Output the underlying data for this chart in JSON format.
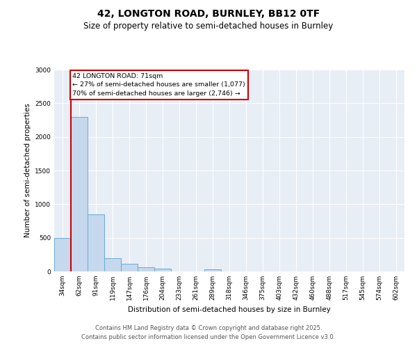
{
  "title1": "42, LONGTON ROAD, BURNLEY, BB12 0TF",
  "title2": "Size of property relative to semi-detached houses in Burnley",
  "xlabel": "Distribution of semi-detached houses by size in Burnley",
  "ylabel": "Number of semi-detached properties",
  "categories": [
    "34sqm",
    "62sqm",
    "91sqm",
    "119sqm",
    "147sqm",
    "176sqm",
    "204sqm",
    "233sqm",
    "261sqm",
    "289sqm",
    "318sqm",
    "346sqm",
    "375sqm",
    "403sqm",
    "432sqm",
    "460sqm",
    "488sqm",
    "517sqm",
    "545sqm",
    "574sqm",
    "602sqm"
  ],
  "values": [
    500,
    2300,
    850,
    200,
    110,
    60,
    40,
    5,
    5,
    30,
    0,
    0,
    0,
    0,
    0,
    0,
    0,
    0,
    0,
    0,
    0
  ],
  "bar_color": "#c5d8ee",
  "bar_edge_color": "#6aaad4",
  "vline_color": "#cc0000",
  "annotation_text": "42 LONGTON ROAD: 71sqm\n← 27% of semi-detached houses are smaller (1,077)\n70% of semi-detached houses are larger (2,746) →",
  "annotation_box_color": "#cc0000",
  "ylim": [
    0,
    3000
  ],
  "yticks": [
    0,
    500,
    1000,
    1500,
    2000,
    2500,
    3000
  ],
  "background_color": "#e8eef5",
  "grid_color": "#ffffff",
  "footer1": "Contains HM Land Registry data © Crown copyright and database right 2025.",
  "footer2": "Contains public sector information licensed under the Open Government Licence v3.0."
}
